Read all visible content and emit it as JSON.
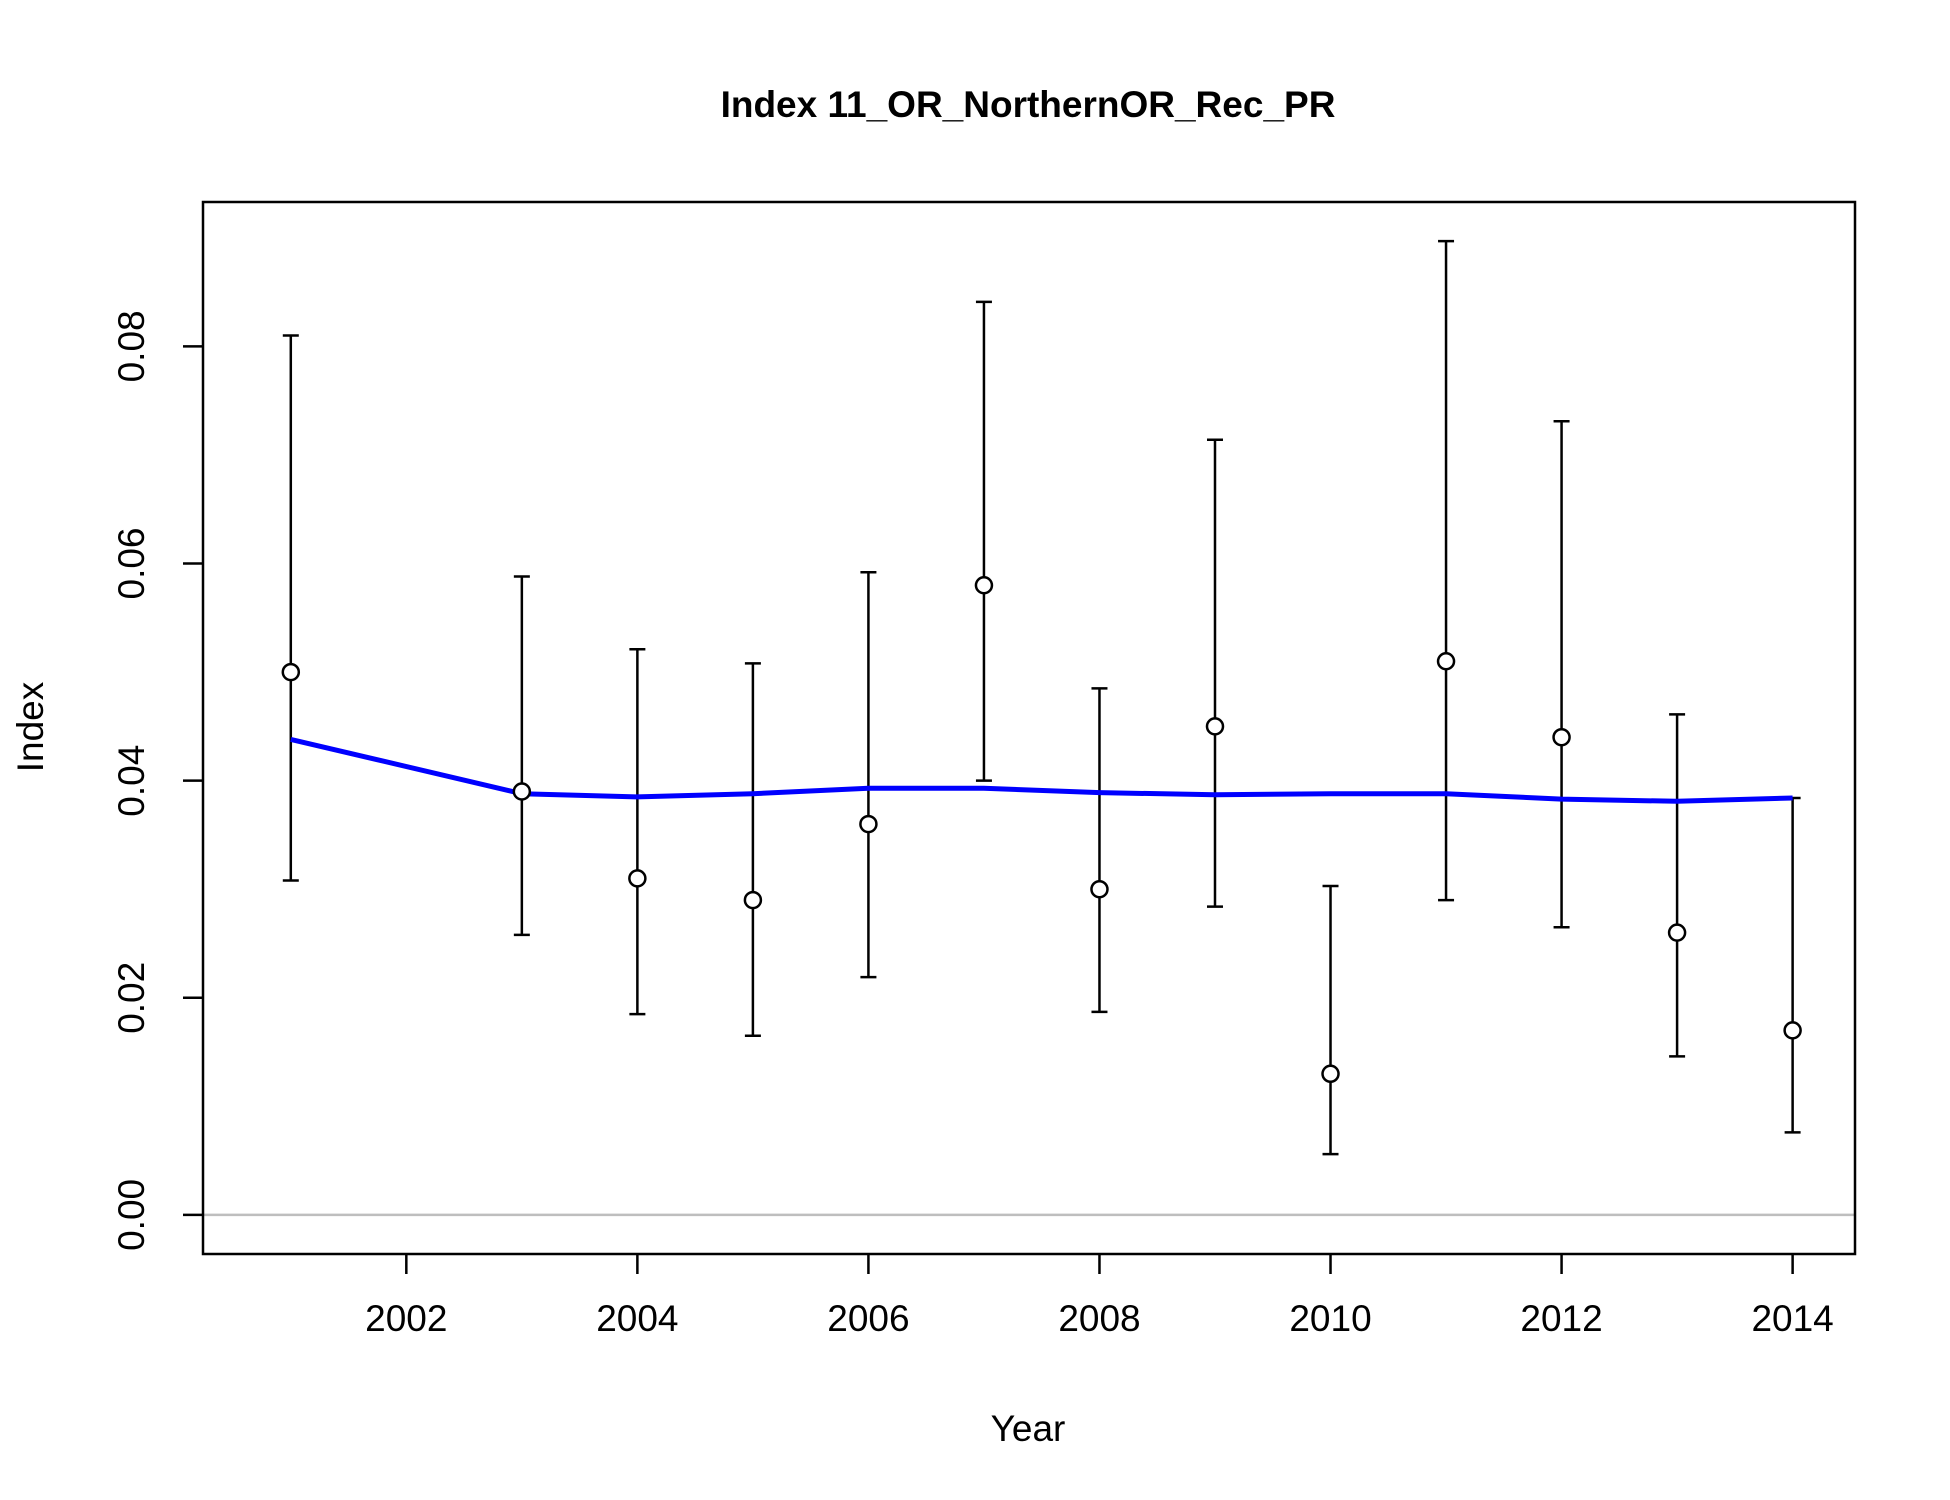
{
  "chart_data": {
    "type": "scatter",
    "title": "Index 11_OR_NorthernOR_Rec_PR",
    "xlabel": "Year",
    "ylabel": "Index",
    "xlim": [
      2000.24,
      2014.54
    ],
    "ylim": [
      -0.0036,
      0.0933
    ],
    "x_ticks": [
      2002,
      2004,
      2006,
      2008,
      2010,
      2012,
      2014
    ],
    "y_ticks": [
      0.0,
      0.02,
      0.04,
      0.06,
      0.08
    ],
    "x_tick_labels": [
      "2002",
      "2004",
      "2006",
      "2008",
      "2010",
      "2012",
      "2014"
    ],
    "y_tick_labels": [
      "0.00",
      "0.02",
      "0.04",
      "0.06",
      "0.08"
    ],
    "reference_line": {
      "y": 0,
      "color": "#bebebe"
    },
    "observed": {
      "x": [
        2001,
        2003,
        2004,
        2005,
        2006,
        2007,
        2008,
        2009,
        2010,
        2011,
        2012,
        2013,
        2014
      ],
      "y": [
        0.05,
        0.039,
        0.031,
        0.029,
        0.036,
        0.058,
        0.03,
        0.045,
        0.013,
        0.051,
        0.044,
        0.026,
        0.017
      ],
      "lower": [
        0.0308,
        0.0258,
        0.0185,
        0.0165,
        0.0219,
        0.04,
        0.0187,
        0.0284,
        0.0056,
        0.029,
        0.0265,
        0.0146,
        0.0076
      ],
      "upper": [
        0.081,
        0.0588,
        0.0521,
        0.0508,
        0.0592,
        0.0841,
        0.0485,
        0.0714,
        0.0303,
        0.0897,
        0.0731,
        0.0461,
        0.0384
      ],
      "color": "#000000"
    },
    "expected": {
      "x": [
        2001,
        2003,
        2004,
        2005,
        2006,
        2007,
        2008,
        2009,
        2010,
        2011,
        2012,
        2013,
        2014
      ],
      "y": [
        0.0438,
        0.0388,
        0.0385,
        0.0388,
        0.0393,
        0.0393,
        0.0389,
        0.0387,
        0.0388,
        0.0388,
        0.0383,
        0.0381,
        0.0384
      ],
      "color": "#0000ff"
    }
  }
}
